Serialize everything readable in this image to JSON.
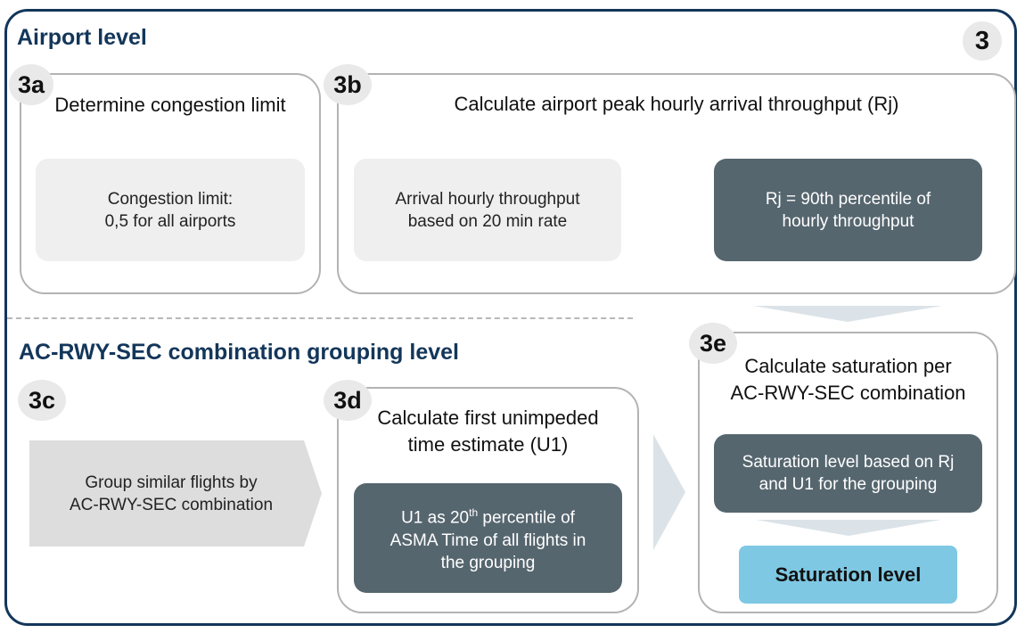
{
  "section_number": "3",
  "airport_level": {
    "title": "Airport level",
    "step_3a": {
      "badge": "3a",
      "title": "Determine congestion limit",
      "box": [
        "Congestion limit:",
        "0,5 for all airports"
      ]
    },
    "step_3b": {
      "badge": "3b",
      "title": "Calculate airport peak hourly arrival throughput (Rj)",
      "input_box": [
        "Arrival hourly throughput",
        "based on 20 min rate"
      ],
      "output_box": [
        "Rj = 90th percentile of",
        "hourly throughput"
      ]
    }
  },
  "grouping_level": {
    "title": "AC-RWY-SEC combination grouping level",
    "step_3c": {
      "badge": "3c",
      "box": [
        "Group similar flights by",
        "AC-RWY-SEC combination"
      ]
    },
    "step_3d": {
      "badge": "3d",
      "title": [
        "Calculate first unimpeded",
        "time estimate (U1)"
      ],
      "box": {
        "line1_prefix": "U1 as 20",
        "line1_sup": "th",
        "line1_suffix": " percentile of",
        "line2": "ASMA Time of all flights in",
        "line3": "the grouping"
      }
    },
    "step_3e": {
      "badge": "3e",
      "title": [
        "Calculate saturation per",
        "AC-RWY-SEC combination"
      ],
      "box": [
        "Saturation level based on Rj",
        "and U1 for the grouping"
      ],
      "result": "Saturation level"
    }
  },
  "colors": {
    "frame": "#13365a",
    "title": "#13365a",
    "panel_border": "#b3b3b3",
    "light_box": "#efefef",
    "dark_box": "#56666f",
    "result_box": "#7ec8e3",
    "arrow": "#dbe3e8"
  }
}
